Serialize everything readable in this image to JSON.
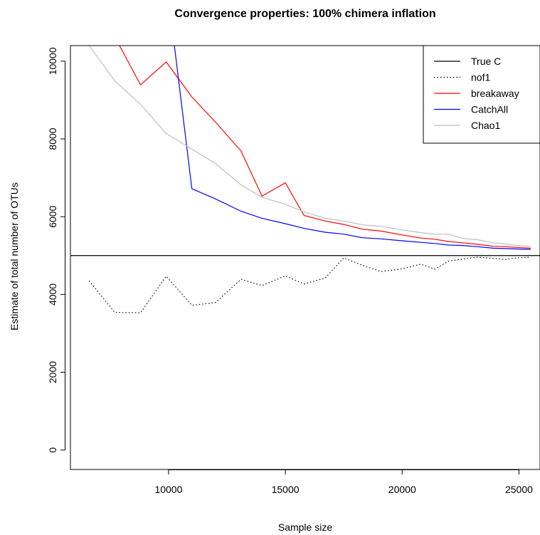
{
  "chart_data": {
    "type": "line",
    "title": "Convergence properties: 100% chimera inflation",
    "xlabel": "Sample size",
    "ylabel": "Estimate of total number of OTUs",
    "xlim": [
      5800,
      25900
    ],
    "ylim": [
      -500,
      10400
    ],
    "xticks": [
      10000,
      15000,
      20000,
      25000
    ],
    "yticks": [
      0,
      2000,
      4000,
      6000,
      8000,
      10000
    ],
    "legend_position": "top-right",
    "true_c": 5000,
    "x": [
      6600,
      7700,
      8800,
      9900,
      11000,
      12000,
      13100,
      14000,
      15000,
      15800,
      16700,
      17500,
      18300,
      19100,
      20000,
      20800,
      21400,
      22000,
      22600,
      23200,
      23900,
      24400,
      24900,
      25500
    ],
    "series": [
      {
        "name": "True C",
        "color": "#000000",
        "style": "solid",
        "hline": 5000
      },
      {
        "name": "nof1",
        "color": "#000000",
        "style": "dotted",
        "values": [
          4350,
          3540,
          3530,
          4470,
          3720,
          3790,
          4390,
          4230,
          4480,
          4270,
          4420,
          4940,
          4750,
          4590,
          4660,
          4780,
          4650,
          4860,
          4910,
          4960,
          4930,
          4900,
          4940,
          4960
        ]
      },
      {
        "name": "breakaway",
        "color": "#ff0000",
        "style": "solid",
        "x": [
          7900,
          8800,
          9900,
          11000,
          12000,
          13100,
          14000,
          15000,
          15800,
          16700,
          17500,
          18300,
          19100,
          20000,
          20800,
          21400,
          22000,
          22600,
          23200,
          23900,
          24400,
          24900,
          25500
        ],
        "values": [
          10400,
          9390,
          9980,
          9080,
          8440,
          7690,
          6530,
          6870,
          6030,
          5890,
          5800,
          5680,
          5630,
          5530,
          5450,
          5420,
          5360,
          5330,
          5290,
          5240,
          5230,
          5210,
          5190
        ]
      },
      {
        "name": "CatchAll",
        "color": "#0000ff",
        "style": "solid",
        "x": [
          10250,
          11000,
          12000,
          13100,
          14000,
          15000,
          15800,
          16700,
          17500,
          18300,
          19100,
          20000,
          20800,
          21400,
          22000,
          22600,
          23200,
          23900,
          24400,
          24900,
          25500
        ],
        "values": [
          10400,
          6720,
          6460,
          6140,
          5960,
          5820,
          5700,
          5600,
          5550,
          5460,
          5430,
          5380,
          5340,
          5310,
          5270,
          5260,
          5230,
          5190,
          5180,
          5170,
          5160
        ]
      },
      {
        "name": "Chao1",
        "color": "#bebebe",
        "style": "solid",
        "values": [
          10400,
          9490,
          8890,
          8140,
          7740,
          7370,
          6820,
          6500,
          6320,
          6120,
          5960,
          5890,
          5790,
          5750,
          5660,
          5590,
          5550,
          5550,
          5440,
          5410,
          5330,
          5300,
          5260,
          5240
        ]
      }
    ]
  }
}
